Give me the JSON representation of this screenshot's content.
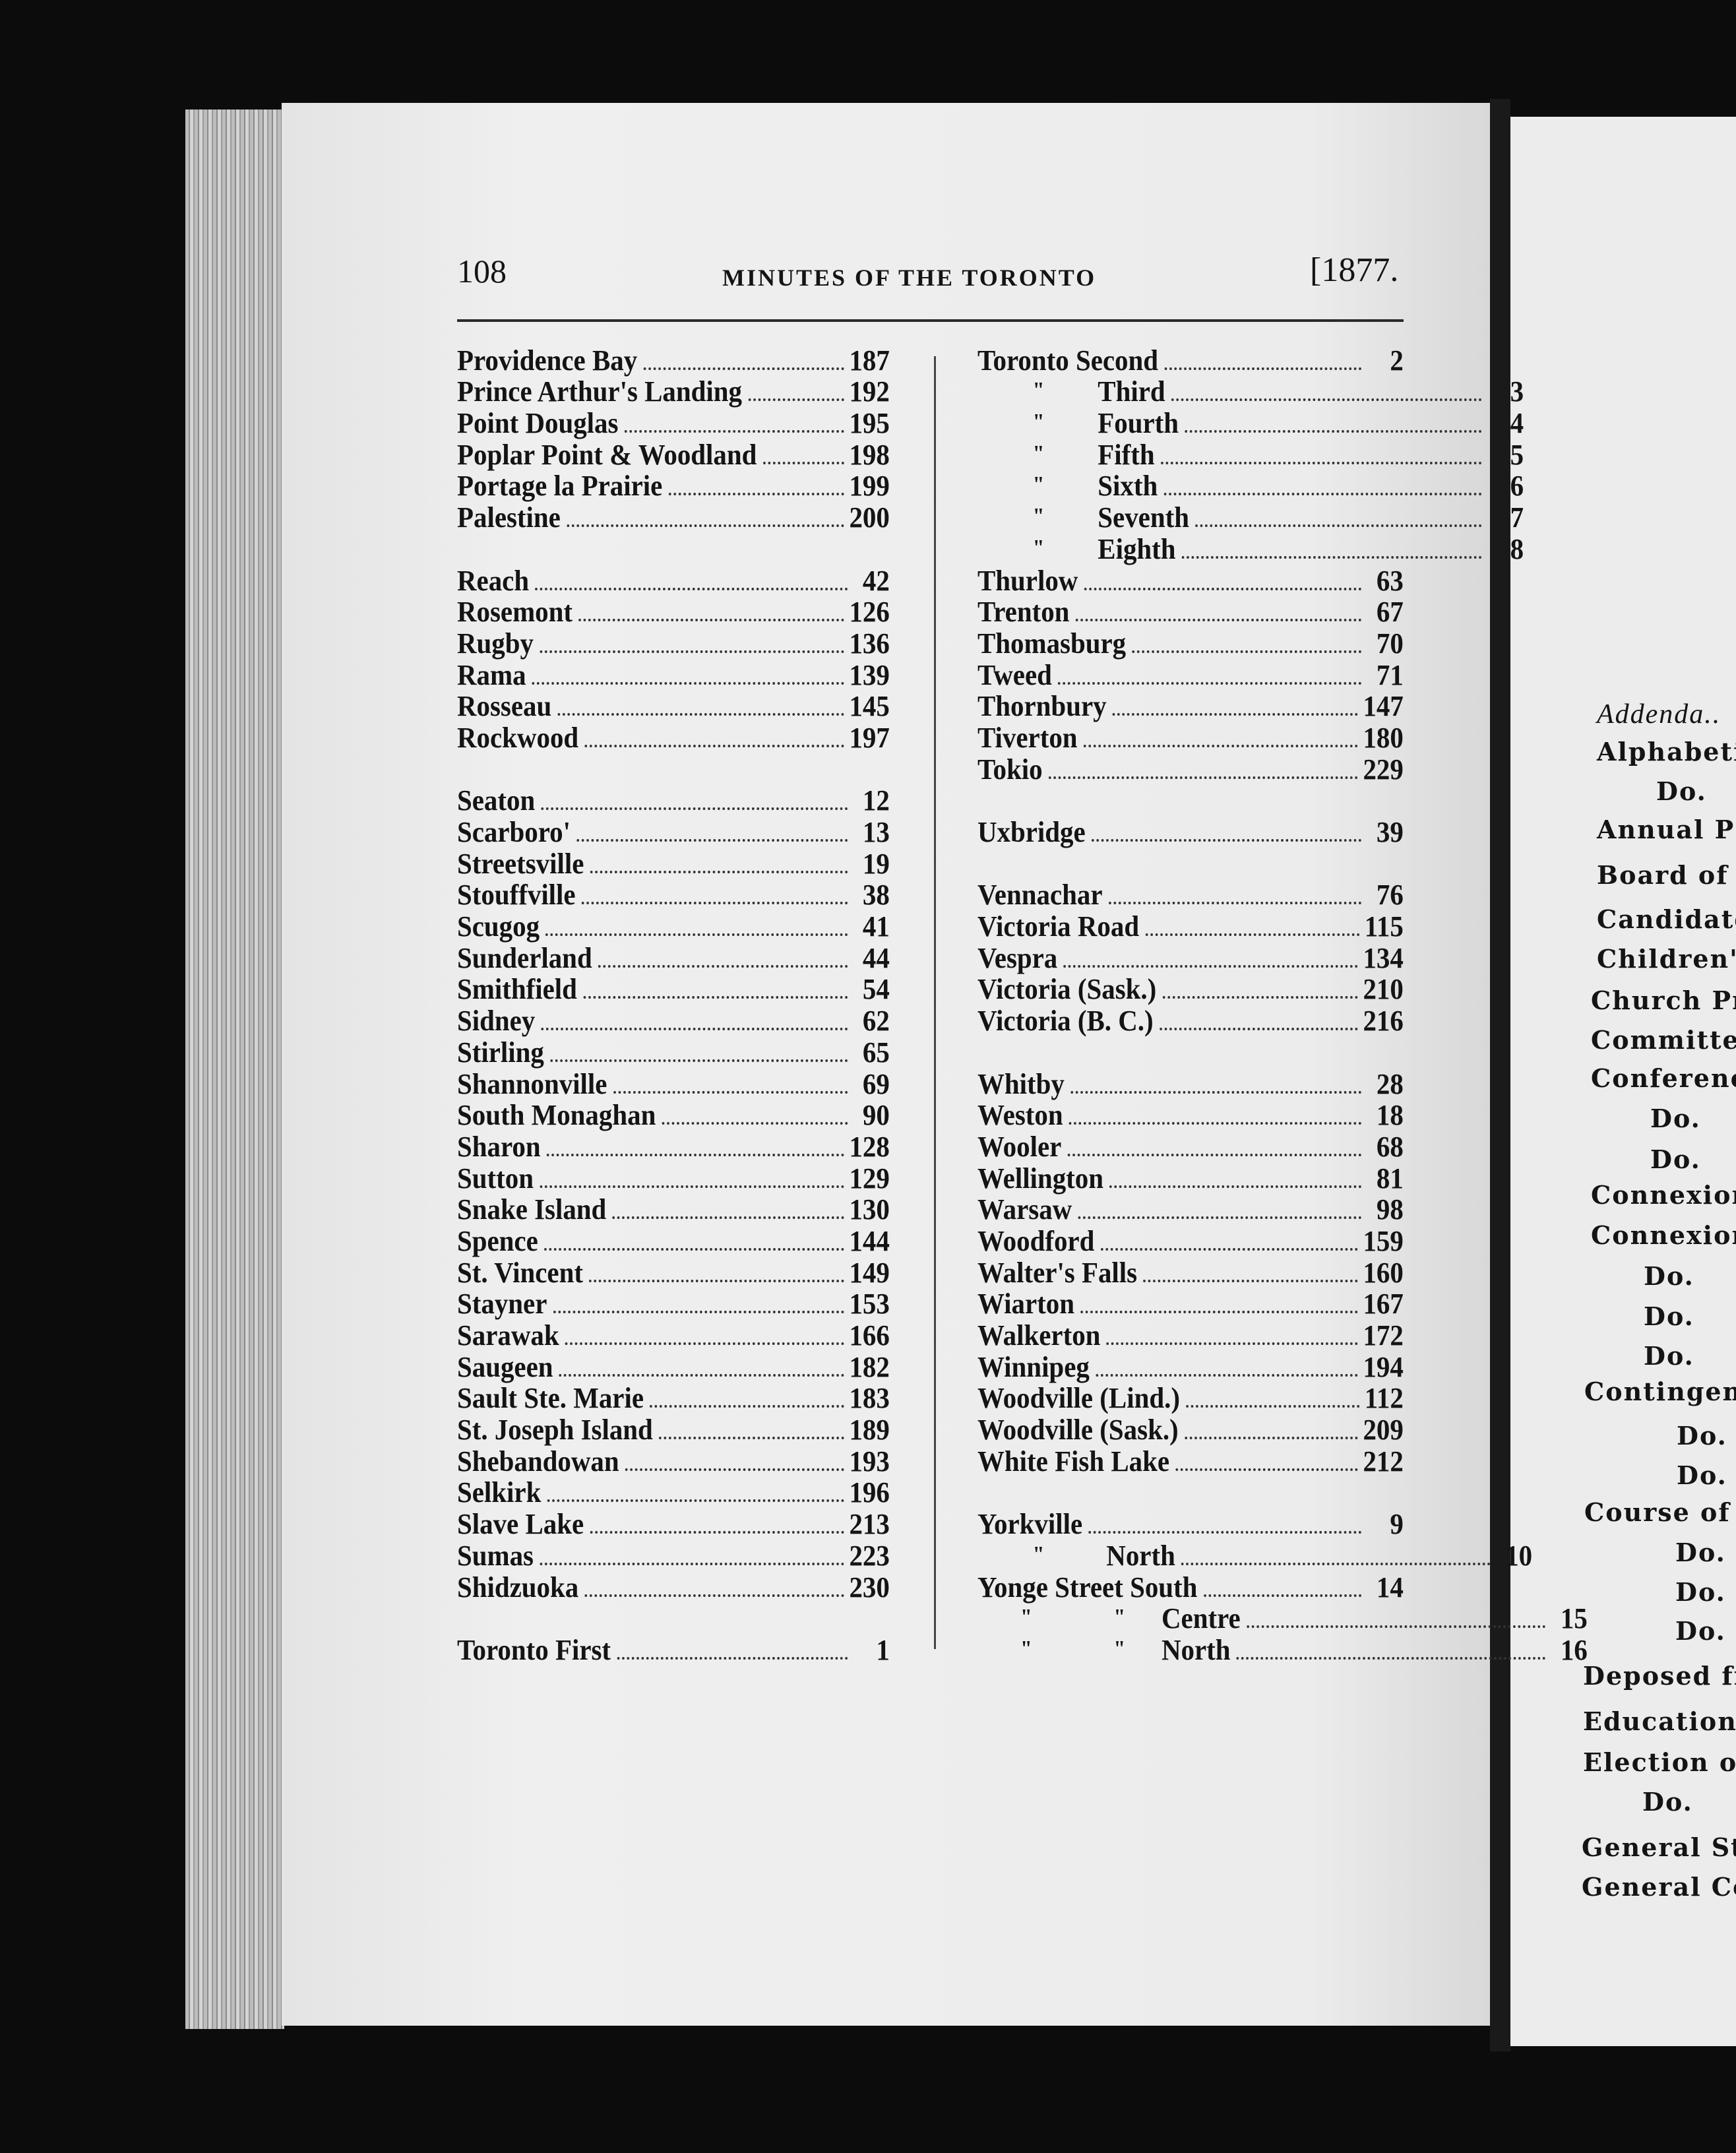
{
  "header": {
    "page_number": "108",
    "title": "MINUTES OF THE TORONTO",
    "year": "[1877."
  },
  "left_column": [
    {
      "name": "Providence Bay",
      "page": "187"
    },
    {
      "name": "Prince Arthur's Landing",
      "page": "192"
    },
    {
      "name": "Point Douglas",
      "page": "195"
    },
    {
      "name": "Poplar Point & Woodland",
      "page": "198"
    },
    {
      "name": "Portage la Prairie",
      "page": "199"
    },
    {
      "name": "Palestine",
      "page": "200"
    },
    null,
    {
      "name": "Reach",
      "page": "42"
    },
    {
      "name": "Rosemont",
      "page": "126"
    },
    {
      "name": "Rugby",
      "page": "136"
    },
    {
      "name": "Rama",
      "page": "139"
    },
    {
      "name": "Rosseau",
      "page": "145"
    },
    {
      "name": "Rockwood",
      "page": "197"
    },
    null,
    {
      "name": "Seaton",
      "page": "12"
    },
    {
      "name": "Scarboro'",
      "page": "13"
    },
    {
      "name": "Streetsville",
      "page": "19"
    },
    {
      "name": "Stouffville",
      "page": "38"
    },
    {
      "name": "Scugog",
      "page": "41"
    },
    {
      "name": "Sunderland",
      "page": "44"
    },
    {
      "name": "Smithfield",
      "page": "54"
    },
    {
      "name": "Sidney",
      "page": "62"
    },
    {
      "name": "Stirling",
      "page": "65"
    },
    {
      "name": "Shannonville",
      "page": "69"
    },
    {
      "name": "South Monaghan",
      "page": "90"
    },
    {
      "name": "Sharon",
      "page": "128"
    },
    {
      "name": "Sutton",
      "page": "129"
    },
    {
      "name": "Snake Island",
      "page": "130"
    },
    {
      "name": "Spence",
      "page": "144"
    },
    {
      "name": "St. Vincent",
      "page": "149"
    },
    {
      "name": "Stayner",
      "page": "153"
    },
    {
      "name": "Sarawak",
      "page": "166"
    },
    {
      "name": "Saugeen",
      "page": "182"
    },
    {
      "name": "Sault Ste. Marie",
      "page": "183"
    },
    {
      "name": "St. Joseph Island",
      "page": "189"
    },
    {
      "name": "Shebandowan",
      "page": "193"
    },
    {
      "name": "Selkirk",
      "page": "196"
    },
    {
      "name": "Slave Lake",
      "page": "213"
    },
    {
      "name": "Sumas",
      "page": "223"
    },
    {
      "name": "Shidzuoka",
      "page": "230"
    },
    null,
    {
      "name": "Toronto First",
      "page": "1"
    }
  ],
  "right_column": [
    {
      "name": "Toronto Second",
      "page": "2"
    },
    {
      "ditto": [
        "\""
      ],
      "name": "Third",
      "page": "3"
    },
    {
      "ditto": [
        "\""
      ],
      "name": "Fourth",
      "page": "4"
    },
    {
      "ditto": [
        "\""
      ],
      "name": "Fifth",
      "page": "5"
    },
    {
      "ditto": [
        "\""
      ],
      "name": "Sixth",
      "page": "6"
    },
    {
      "ditto": [
        "\""
      ],
      "name": "Seventh",
      "page": "7"
    },
    {
      "ditto": [
        "\""
      ],
      "name": "Eighth",
      "page": "8"
    },
    {
      "name": "Thurlow",
      "page": "63"
    },
    {
      "name": "Trenton",
      "page": "67"
    },
    {
      "name": "Thomasburg",
      "page": "70"
    },
    {
      "name": "Tweed",
      "page": "71"
    },
    {
      "name": "Thornbury",
      "page": "147"
    },
    {
      "name": "Tiverton",
      "page": "180"
    },
    {
      "name": "Tokio",
      "page": "229"
    },
    null,
    {
      "name": "Uxbridge",
      "page": "39"
    },
    null,
    {
      "name": "Vennachar",
      "page": "76"
    },
    {
      "name": "Victoria Road",
      "page": "115"
    },
    {
      "name": "Vespra",
      "page": "134"
    },
    {
      "name": "Victoria (Sask.)",
      "page": "210"
    },
    {
      "name": "Victoria (B. C.)",
      "page": "216"
    },
    null,
    {
      "name": "Whitby",
      "page": "28"
    },
    {
      "name": "Weston",
      "page": "18"
    },
    {
      "name": "Wooler",
      "page": "68"
    },
    {
      "name": "Wellington",
      "page": "81"
    },
    {
      "name": "Warsaw",
      "page": "98"
    },
    {
      "name": "Woodford",
      "page": "159"
    },
    {
      "name": "Walter's Falls",
      "page": "160"
    },
    {
      "name": "Wiarton",
      "page": "167"
    },
    {
      "name": "Walkerton",
      "page": "172"
    },
    {
      "name": "Winnipeg",
      "page": "194"
    },
    {
      "name": "Woodville (Lind.)",
      "page": "112"
    },
    {
      "name": "Woodville (Sask.)",
      "page": "209"
    },
    {
      "name": "White Fish Lake",
      "page": "212"
    },
    null,
    {
      "name": "Yorkville",
      "page": "9"
    },
    {
      "ditto": [
        "\""
      ],
      "name": "North",
      "page": "10",
      "short": true
    },
    {
      "name": "Yonge Street South",
      "page": "14"
    },
    {
      "ditto": [
        "\"",
        "\""
      ],
      "name": "Centre",
      "page": "15"
    },
    {
      "ditto": [
        "\"",
        "\""
      ],
      "name": "North",
      "page": "16"
    }
  ],
  "facing_page": [
    {
      "text": "Addenda..",
      "italic": true
    },
    {
      "text": "Alphabeti"
    },
    {
      "text": "Do.",
      "sub": 1
    },
    {
      "text": "Annual P"
    },
    {
      "text": "Board of I"
    },
    {
      "text": "Candidate"
    },
    {
      "text": "Children's"
    },
    {
      "text": "Church Pr"
    },
    {
      "text": "Committe"
    },
    {
      "text": "Conferenc"
    },
    {
      "text": "Do.",
      "sub": 1
    },
    {
      "text": "Do.",
      "sub": 1
    },
    {
      "text": "Connexion"
    },
    {
      "text": "Connexion"
    },
    {
      "text": "Do.",
      "sub": 1
    },
    {
      "text": "Do.",
      "sub": 1
    },
    {
      "text": "Do.",
      "sub": 1
    },
    {
      "text": "Contingen"
    },
    {
      "text": "Do.",
      "sub": 2
    },
    {
      "text": "Do.",
      "sub": 2
    },
    {
      "text": "Course of"
    },
    {
      "text": "Do.",
      "sub": 2
    },
    {
      "text": "Do.",
      "sub": 2
    },
    {
      "text": "Do.",
      "sub": 2
    },
    {
      "text": "Deposed fr"
    },
    {
      "text": "Educationa"
    },
    {
      "text": "Election of"
    },
    {
      "text": "Do.",
      "sub": 1
    },
    {
      "text": "General St"
    },
    {
      "text": "General Co"
    }
  ],
  "colors": {
    "background": "#0c0c0c",
    "paper": "#ececec",
    "ink": "#141414"
  }
}
